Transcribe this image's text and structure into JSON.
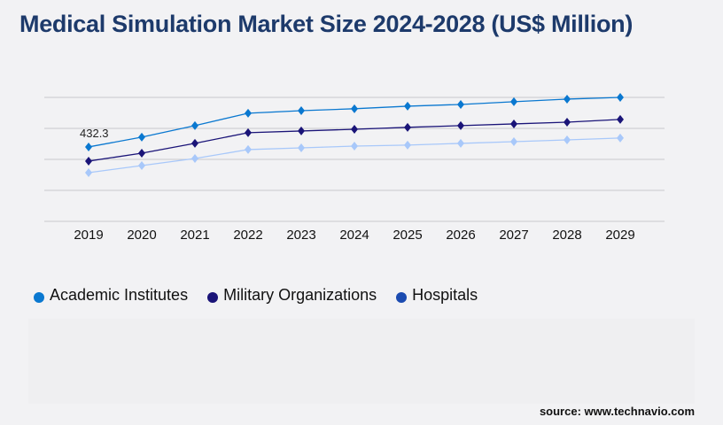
{
  "title": "Medical Simulation Market Size 2024-2028 (US$ Million)",
  "source": "source: www.technavio.com",
  "chart_data": {
    "type": "line",
    "title": "Medical Simulation Market Size 2024-2028 (US$ Million)",
    "categories": [
      "2019",
      "2020",
      "2021",
      "2022",
      "2023",
      "2024",
      "2025",
      "2026",
      "2027",
      "2028",
      "2029"
    ],
    "ylim": [
      0,
      720
    ],
    "grid": true,
    "legend_position": "bottom-left",
    "y_axis_labels_shown": false,
    "series": [
      {
        "name": "Academic Institutes",
        "color": "#0a78d0",
        "legend_color": "#0a78d0",
        "values": [
          432.3,
          489,
          556,
          628,
          643,
          654,
          669,
          679,
          695,
          710,
          720
        ]
      },
      {
        "name": "Military Organizations",
        "color": "#1a1478",
        "legend_color": "#1a1478",
        "values": [
          350,
          396,
          453,
          515,
          525,
          535,
          546,
          556,
          566,
          576,
          592
        ]
      },
      {
        "name": "Hospitals",
        "color": "#a8c8fa",
        "legend_color": "#1b4bb0",
        "values": [
          283,
          324,
          365,
          417,
          427,
          437,
          443,
          453,
          463,
          473,
          484
        ]
      }
    ],
    "annotations": [
      {
        "series": "Academic Institutes",
        "category": "2019",
        "text": "432.3"
      }
    ]
  }
}
